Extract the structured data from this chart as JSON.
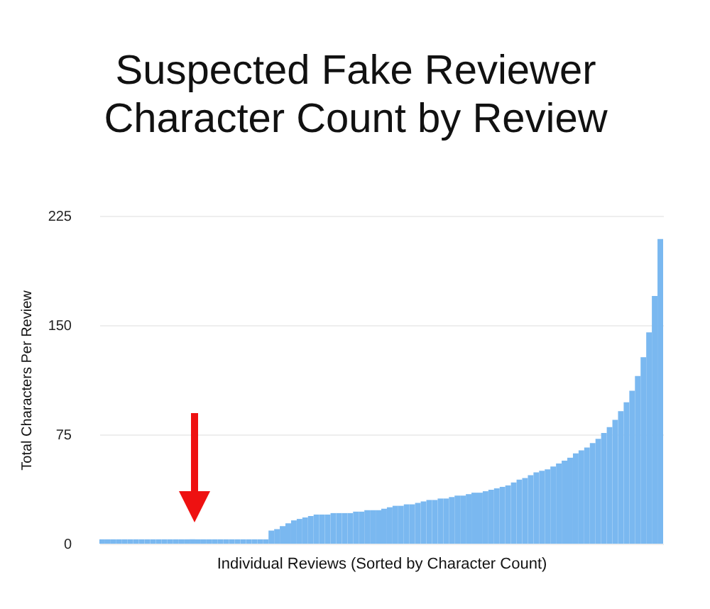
{
  "chart_data": {
    "type": "bar",
    "title": "Suspected Fake Reviewer\nCharacter Count by Review",
    "xlabel": "Individual Reviews (Sorted by Character Count)",
    "ylabel": "Total Characters Per Review",
    "categories": [
      null,
      null,
      null,
      null,
      null,
      null,
      null,
      null,
      null,
      null,
      null,
      null,
      null,
      null,
      null,
      null,
      null,
      null,
      null,
      null,
      null,
      null,
      null,
      null,
      null,
      null,
      null,
      null,
      null,
      null,
      null,
      null,
      null,
      null,
      null,
      null,
      null,
      null,
      null,
      null,
      null,
      null,
      null,
      null,
      null,
      null,
      null,
      null,
      null,
      null,
      null,
      null,
      null,
      null,
      null,
      null,
      null,
      null,
      null,
      null,
      null,
      null,
      null,
      null,
      null,
      null,
      null,
      null,
      null,
      null,
      null,
      null,
      null,
      null,
      null,
      null,
      null,
      null,
      null,
      null,
      null,
      null,
      null,
      null,
      null,
      null,
      null,
      null,
      null,
      null,
      null,
      null,
      null,
      null,
      null,
      null,
      null,
      null,
      null,
      null
    ],
    "values": [
      3,
      3,
      3,
      3,
      3,
      3,
      3,
      3,
      3,
      3,
      3,
      3,
      3,
      3,
      3,
      3,
      3,
      3,
      3,
      3,
      3,
      3,
      3,
      3,
      3,
      3,
      3,
      3,
      3,
      3,
      9,
      10,
      12,
      14,
      16,
      17,
      18,
      19,
      20,
      20,
      20,
      21,
      21,
      21,
      21,
      22,
      22,
      23,
      23,
      23,
      24,
      25,
      26,
      26,
      27,
      27,
      28,
      29,
      30,
      30,
      31,
      31,
      32,
      33,
      33,
      34,
      35,
      35,
      36,
      37,
      38,
      39,
      40,
      42,
      44,
      45,
      47,
      49,
      50,
      51,
      53,
      55,
      57,
      59,
      62,
      64,
      66,
      69,
      72,
      76,
      80,
      85,
      91,
      97,
      105,
      115,
      128,
      145,
      170,
      209
    ],
    "color": "#7ab8f0",
    "ylim": [
      0,
      225
    ],
    "yticks": [
      0,
      75,
      150,
      225
    ],
    "grid": "y",
    "tick_labels": "y"
  }
}
